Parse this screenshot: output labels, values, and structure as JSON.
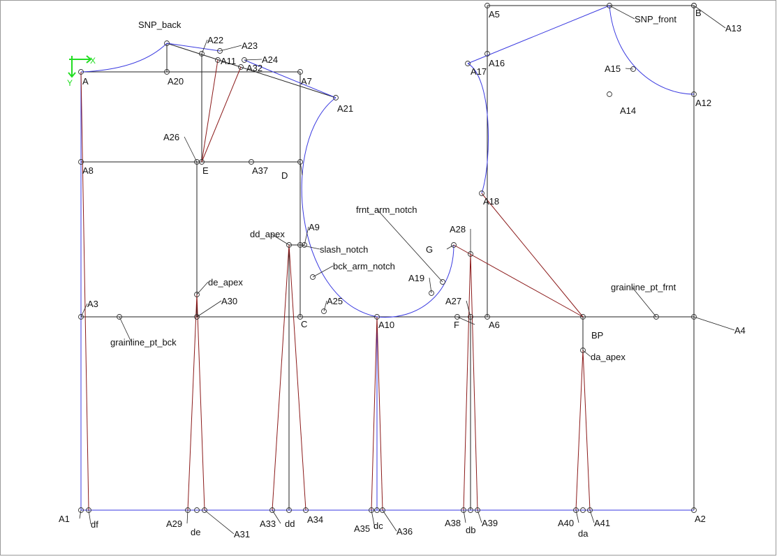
{
  "colors": {
    "construction_line": "#222222",
    "pattern_curve": "#3a3ae0",
    "dart_line": "#8b1a1a",
    "label_leader": "#222222",
    "axis_indicator": "#22dd22",
    "point_marker": "#333333"
  },
  "axis_indicator": {
    "x_label": "X",
    "y_label": "Y"
  },
  "points": [
    {
      "id": "A",
      "label": "A"
    },
    {
      "id": "A20",
      "label": "A20"
    },
    {
      "id": "A7",
      "label": "A7"
    },
    {
      "id": "SNP_back",
      "label": "SNP_back"
    },
    {
      "id": "A22",
      "label": "A22"
    },
    {
      "id": "A23",
      "label": "A23"
    },
    {
      "id": "A11",
      "label": "A11"
    },
    {
      "id": "A24",
      "label": "A24"
    },
    {
      "id": "A32",
      "label": "A32"
    },
    {
      "id": "A21",
      "label": "A21"
    },
    {
      "id": "A26",
      "label": "A26"
    },
    {
      "id": "A8",
      "label": "A8"
    },
    {
      "id": "E",
      "label": "E"
    },
    {
      "id": "A37",
      "label": "A37"
    },
    {
      "id": "D",
      "label": "D"
    },
    {
      "id": "dd_apex",
      "label": "dd_apex"
    },
    {
      "id": "A9",
      "label": "A9"
    },
    {
      "id": "slash_notch",
      "label": "slash_notch"
    },
    {
      "id": "bck_arm_notch",
      "label": "bck_arm_notch"
    },
    {
      "id": "de_apex",
      "label": "de_apex"
    },
    {
      "id": "A30",
      "label": "A30"
    },
    {
      "id": "A3",
      "label": "A3"
    },
    {
      "id": "A25",
      "label": "A25"
    },
    {
      "id": "C",
      "label": "C"
    },
    {
      "id": "grainline_pt_bck",
      "label": "grainline_pt_bck"
    },
    {
      "id": "A10",
      "label": "A10"
    },
    {
      "id": "frnt_arm_notch",
      "label": "frnt_arm_notch"
    },
    {
      "id": "G",
      "label": "G"
    },
    {
      "id": "A28",
      "label": "A28"
    },
    {
      "id": "A19",
      "label": "A19"
    },
    {
      "id": "A27",
      "label": "A27"
    },
    {
      "id": "F",
      "label": "F"
    },
    {
      "id": "A6",
      "label": "A6"
    },
    {
      "id": "A5",
      "label": "A5"
    },
    {
      "id": "SNP_front",
      "label": "SNP_front"
    },
    {
      "id": "B",
      "label": "B"
    },
    {
      "id": "A13",
      "label": "A13"
    },
    {
      "id": "A16",
      "label": "A16"
    },
    {
      "id": "A17",
      "label": "A17"
    },
    {
      "id": "A15",
      "label": "A15"
    },
    {
      "id": "A14",
      "label": "A14"
    },
    {
      "id": "A12",
      "label": "A12"
    },
    {
      "id": "A18",
      "label": "A18"
    },
    {
      "id": "grainline_pt_frnt",
      "label": "grainline_pt_frnt"
    },
    {
      "id": "BP",
      "label": "BP"
    },
    {
      "id": "A4",
      "label": "A4"
    },
    {
      "id": "da_apex",
      "label": "da_apex"
    },
    {
      "id": "A1",
      "label": "A1"
    },
    {
      "id": "df",
      "label": "df"
    },
    {
      "id": "A29",
      "label": "A29"
    },
    {
      "id": "de",
      "label": "de"
    },
    {
      "id": "A31",
      "label": "A31"
    },
    {
      "id": "A33",
      "label": "A33"
    },
    {
      "id": "dd",
      "label": "dd"
    },
    {
      "id": "A34",
      "label": "A34"
    },
    {
      "id": "A35",
      "label": "A35"
    },
    {
      "id": "dc",
      "label": "dc"
    },
    {
      "id": "A36",
      "label": "A36"
    },
    {
      "id": "A38",
      "label": "A38"
    },
    {
      "id": "db",
      "label": "db"
    },
    {
      "id": "A39",
      "label": "A39"
    },
    {
      "id": "A40",
      "label": "A40"
    },
    {
      "id": "da",
      "label": "da"
    },
    {
      "id": "A41",
      "label": "A41"
    },
    {
      "id": "A2",
      "label": "A2"
    }
  ]
}
